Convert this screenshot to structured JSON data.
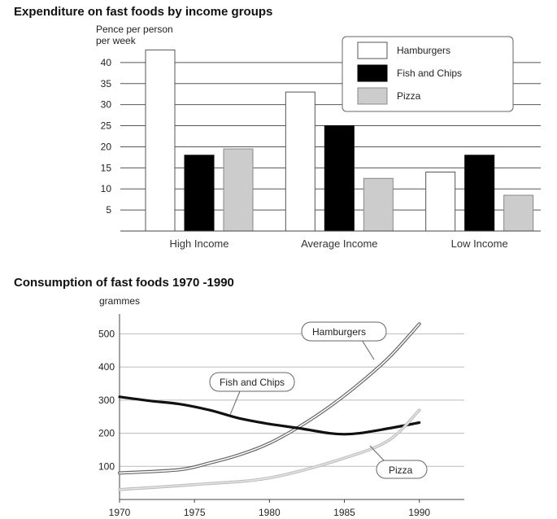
{
  "chart_data": [
    {
      "type": "bar",
      "title": "Expenditure on fast foods by income groups",
      "ylabel_lines": [
        "Pence per person",
        "per week"
      ],
      "categories": [
        "High Income",
        "Average Income",
        "Low Income"
      ],
      "series": [
        {
          "name": "Hamburgers",
          "values": [
            43,
            33,
            14
          ],
          "color": "#ffffff"
        },
        {
          "name": "Fish and Chips",
          "values": [
            18,
            25,
            18
          ],
          "color": "#000000"
        },
        {
          "name": "Pizza",
          "values": [
            19.5,
            12.5,
            8.5
          ],
          "color": "#cccccc"
        }
      ],
      "ylim": [
        0,
        45
      ],
      "yticks": [
        5,
        10,
        15,
        20,
        25,
        30,
        35,
        40
      ],
      "grid": true,
      "legend_position": "top-right"
    },
    {
      "type": "line",
      "title": "Consumption of fast foods 1970 -1990",
      "ylabel": "grammes",
      "xlim": [
        1970,
        1993
      ],
      "ylim": [
        0,
        560
      ],
      "xticks": [
        1970,
        1975,
        1980,
        1985,
        1990
      ],
      "yticks": [
        100,
        200,
        300,
        400,
        500
      ],
      "grid": true,
      "series": [
        {
          "name": "Hamburgers",
          "style": "double",
          "x": [
            1970,
            1974,
            1976,
            1978,
            1980,
            1982,
            1984,
            1986,
            1988,
            1990
          ],
          "y": [
            80,
            90,
            110,
            135,
            170,
            220,
            280,
            350,
            430,
            530
          ]
        },
        {
          "name": "Fish and Chips",
          "style": "thick",
          "x": [
            1970,
            1972,
            1974,
            1976,
            1978,
            1980,
            1982,
            1984,
            1985,
            1986,
            1988,
            1990
          ],
          "y": [
            310,
            298,
            288,
            270,
            245,
            228,
            215,
            200,
            197,
            200,
            215,
            232
          ]
        },
        {
          "name": "Pizza",
          "style": "light",
          "x": [
            1970,
            1975,
            1980,
            1985,
            1988,
            1990
          ],
          "y": [
            30,
            45,
            65,
            125,
            180,
            270
          ]
        }
      ]
    }
  ]
}
